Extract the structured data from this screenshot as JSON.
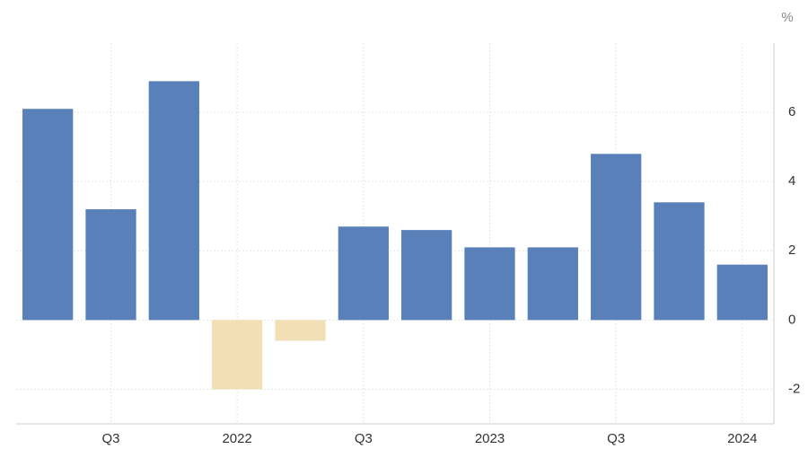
{
  "chart_data": {
    "type": "bar",
    "y_unit": "%",
    "categories": [
      null,
      "Q3",
      null,
      "2022",
      null,
      "Q3",
      null,
      "2023",
      null,
      "Q3",
      null,
      "2024"
    ],
    "values": [
      6.1,
      3.2,
      6.9,
      -2.0,
      -0.6,
      2.7,
      2.6,
      2.1,
      2.1,
      4.8,
      3.4,
      1.6
    ],
    "color": "#5a80ba",
    "negative_color": "#f2dfb6",
    "ylim": [
      -3,
      8
    ],
    "yticks": [
      -2,
      0,
      2,
      4,
      6
    ],
    "grid": true,
    "y_axis_side": "right"
  }
}
